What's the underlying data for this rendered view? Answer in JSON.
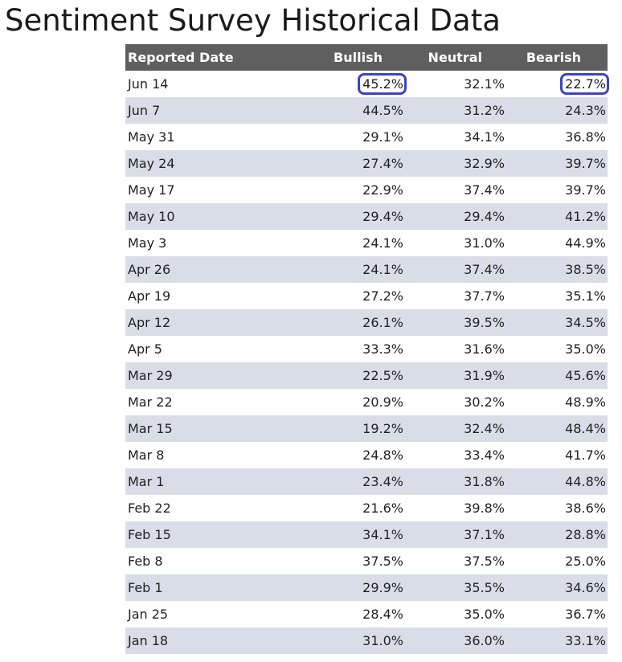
{
  "title": "Sentiment Survey Historical Data",
  "highlight_color": "#3b44c4",
  "header_color": "#5f5f5f",
  "stripe_color": "#d9dde8",
  "chart_data": {
    "type": "table",
    "columns": [
      "Reported Date",
      "Bullish",
      "Neutral",
      "Bearish"
    ],
    "rows": [
      {
        "date": "Jun 14",
        "bullish": "45.2%",
        "neutral": "32.1%",
        "bearish": "22.7%"
      },
      {
        "date": "Jun 7",
        "bullish": "44.5%",
        "neutral": "31.2%",
        "bearish": "24.3%"
      },
      {
        "date": "May 31",
        "bullish": "29.1%",
        "neutral": "34.1%",
        "bearish": "36.8%"
      },
      {
        "date": "May 24",
        "bullish": "27.4%",
        "neutral": "32.9%",
        "bearish": "39.7%"
      },
      {
        "date": "May 17",
        "bullish": "22.9%",
        "neutral": "37.4%",
        "bearish": "39.7%"
      },
      {
        "date": "May 10",
        "bullish": "29.4%",
        "neutral": "29.4%",
        "bearish": "41.2%"
      },
      {
        "date": "May 3",
        "bullish": "24.1%",
        "neutral": "31.0%",
        "bearish": "44.9%"
      },
      {
        "date": "Apr 26",
        "bullish": "24.1%",
        "neutral": "37.4%",
        "bearish": "38.5%"
      },
      {
        "date": "Apr 19",
        "bullish": "27.2%",
        "neutral": "37.7%",
        "bearish": "35.1%"
      },
      {
        "date": "Apr 12",
        "bullish": "26.1%",
        "neutral": "39.5%",
        "bearish": "34.5%"
      },
      {
        "date": "Apr 5",
        "bullish": "33.3%",
        "neutral": "31.6%",
        "bearish": "35.0%"
      },
      {
        "date": "Mar 29",
        "bullish": "22.5%",
        "neutral": "31.9%",
        "bearish": "45.6%"
      },
      {
        "date": "Mar 22",
        "bullish": "20.9%",
        "neutral": "30.2%",
        "bearish": "48.9%"
      },
      {
        "date": "Mar 15",
        "bullish": "19.2%",
        "neutral": "32.4%",
        "bearish": "48.4%"
      },
      {
        "date": "Mar 8",
        "bullish": "24.8%",
        "neutral": "33.4%",
        "bearish": "41.7%"
      },
      {
        "date": "Mar 1",
        "bullish": "23.4%",
        "neutral": "31.8%",
        "bearish": "44.8%"
      },
      {
        "date": "Feb 22",
        "bullish": "21.6%",
        "neutral": "39.8%",
        "bearish": "38.6%"
      },
      {
        "date": "Feb 15",
        "bullish": "34.1%",
        "neutral": "37.1%",
        "bearish": "28.8%"
      },
      {
        "date": "Feb 8",
        "bullish": "37.5%",
        "neutral": "37.5%",
        "bearish": "25.0%"
      },
      {
        "date": "Feb 1",
        "bullish": "29.9%",
        "neutral": "35.5%",
        "bearish": "34.6%"
      },
      {
        "date": "Jan 25",
        "bullish": "28.4%",
        "neutral": "35.0%",
        "bearish": "36.7%"
      },
      {
        "date": "Jan 18",
        "bullish": "31.0%",
        "neutral": "36.0%",
        "bearish": "33.1%"
      }
    ],
    "highlighted_cells": [
      {
        "row": 0,
        "column": "bullish"
      },
      {
        "row": 0,
        "column": "bearish"
      }
    ]
  }
}
